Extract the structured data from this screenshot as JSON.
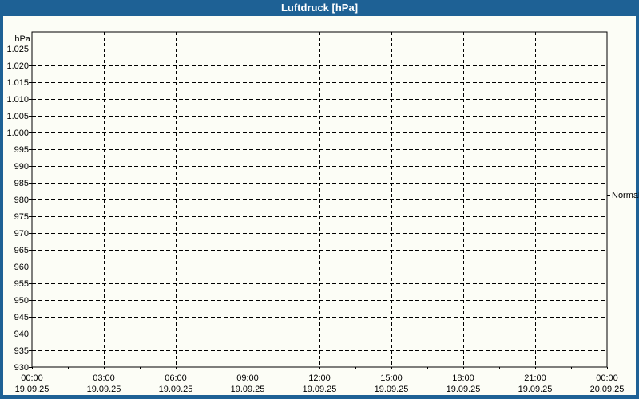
{
  "window": {
    "title": "Luftdruck [hPa]"
  },
  "colors": {
    "frame": "#1e6195",
    "title_text": "#ffffff",
    "content_bg": "#fcfdf6",
    "axis": "#000000",
    "label_text": "#000000"
  },
  "chart_data": {
    "type": "line",
    "title": "Luftdruck [hPa]",
    "y_unit": "hPa",
    "ylabel": "",
    "xlabel": "",
    "ylim": [
      930,
      1030
    ],
    "y_tick_step": 5,
    "y_ticks": [
      {
        "v": 1025,
        "label": "1.025"
      },
      {
        "v": 1020,
        "label": "1.020"
      },
      {
        "v": 1015,
        "label": "1.015"
      },
      {
        "v": 1010,
        "label": "1.010"
      },
      {
        "v": 1005,
        "label": "1.005"
      },
      {
        "v": 1000,
        "label": "1.000"
      },
      {
        "v": 995,
        "label": "995"
      },
      {
        "v": 990,
        "label": "990"
      },
      {
        "v": 985,
        "label": "985"
      },
      {
        "v": 980,
        "label": "980"
      },
      {
        "v": 975,
        "label": "975"
      },
      {
        "v": 970,
        "label": "970"
      },
      {
        "v": 965,
        "label": "965"
      },
      {
        "v": 960,
        "label": "960"
      },
      {
        "v": 955,
        "label": "955"
      },
      {
        "v": 950,
        "label": "950"
      },
      {
        "v": 945,
        "label": "945"
      },
      {
        "v": 940,
        "label": "940"
      },
      {
        "v": 935,
        "label": "935"
      },
      {
        "v": 930,
        "label": "930"
      }
    ],
    "x_range_hours": [
      0,
      24
    ],
    "x_major_step_hours": 3,
    "x_minor_step_hours": 1.5,
    "x_ticks": [
      {
        "h": 0,
        "time": "00:00",
        "date": "19.09.25"
      },
      {
        "h": 3,
        "time": "03:00",
        "date": "19.09.25"
      },
      {
        "h": 6,
        "time": "06:00",
        "date": "19.09.25"
      },
      {
        "h": 9,
        "time": "09:00",
        "date": "19.09.25"
      },
      {
        "h": 12,
        "time": "12:00",
        "date": "19.09.25"
      },
      {
        "h": 15,
        "time": "15:00",
        "date": "19.09.25"
      },
      {
        "h": 18,
        "time": "18:00",
        "date": "19.09.25"
      },
      {
        "h": 21,
        "time": "21:00",
        "date": "19.09.25"
      },
      {
        "h": 24,
        "time": "00:00",
        "date": "20.09.25"
      }
    ],
    "grid": true,
    "legend_position": "none",
    "series": [],
    "annotations": [
      {
        "label": "Normal",
        "value_hpa": 981.5,
        "side": "right"
      }
    ]
  }
}
